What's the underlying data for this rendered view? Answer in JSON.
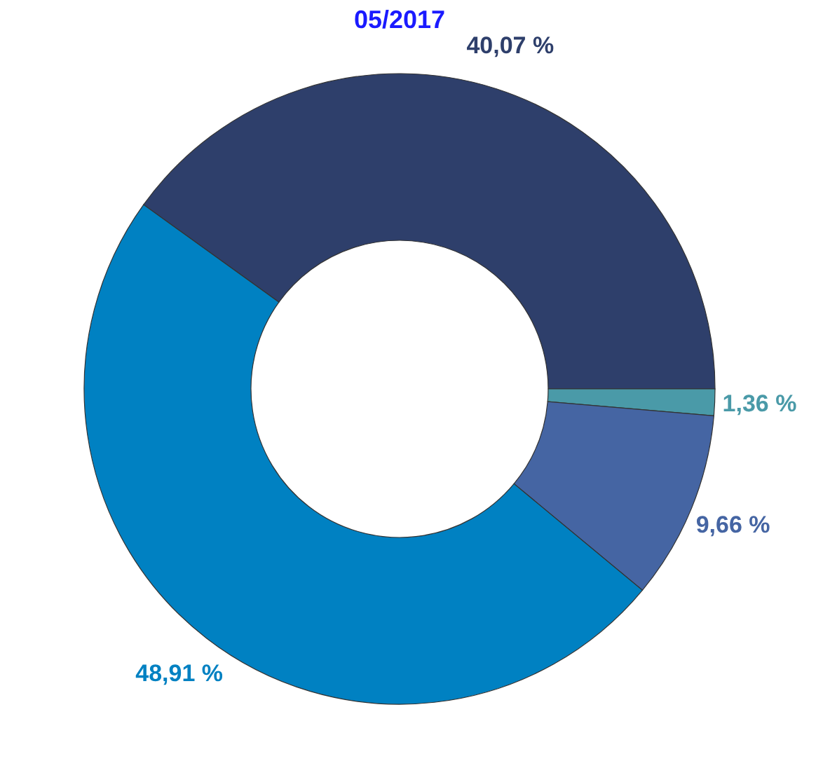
{
  "chart_data": {
    "type": "donut",
    "title": "05/2017",
    "categories": [
      null,
      null,
      null,
      null
    ],
    "values": [
      40.07,
      1.36,
      9.66,
      48.91
    ],
    "value_labels": [
      "40,07 %",
      "1,36 %",
      "9,66 %",
      "48,91 %"
    ],
    "colors": [
      "#2e3f6b",
      "#4a9aa8",
      "#4565a3",
      "#0081c2"
    ],
    "legend": false
  }
}
